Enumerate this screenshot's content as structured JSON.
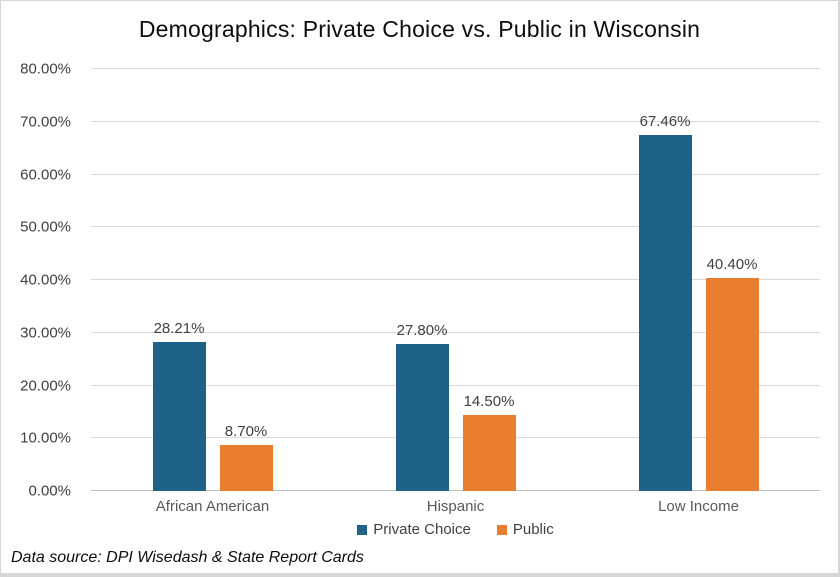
{
  "chart_data": {
    "type": "bar",
    "title": "Demographics: Private Choice vs. Public in Wisconsin",
    "categories": [
      "African American",
      "Hispanic",
      "Low Income"
    ],
    "series": [
      {
        "name": "Private Choice",
        "color": "#1F6287",
        "values": [
          28.21,
          27.8,
          67.46
        ],
        "labels": [
          "28.21%",
          "27.80%",
          "67.46%"
        ]
      },
      {
        "name": "Public",
        "color": "#E87E2F",
        "values": [
          8.7,
          14.5,
          40.4
        ],
        "labels": [
          "8.70%",
          "14.50%",
          "40.40%"
        ]
      }
    ],
    "ylim": [
      0,
      80
    ],
    "ytick_step": 10,
    "yticks": [
      {
        "value": 0,
        "label": "0.00%"
      },
      {
        "value": 10,
        "label": "10.00%"
      },
      {
        "value": 20,
        "label": "20.00%"
      },
      {
        "value": 30,
        "label": "30.00%"
      },
      {
        "value": 40,
        "label": "40.00%"
      },
      {
        "value": 50,
        "label": "50.00%"
      },
      {
        "value": 60,
        "label": "60.00%"
      },
      {
        "value": 70,
        "label": "70.00%"
      },
      {
        "value": 80,
        "label": "80.00%"
      }
    ],
    "grid": true,
    "legend_position": "bottom"
  },
  "footer": {
    "source_note": "Data source: DPI Wisedash & State Report Cards"
  },
  "colors": {
    "private_choice": "#1F6287",
    "public": "#E87E2F",
    "gridline": "#D9D9D9",
    "axis_line": "#BFBFBF"
  }
}
